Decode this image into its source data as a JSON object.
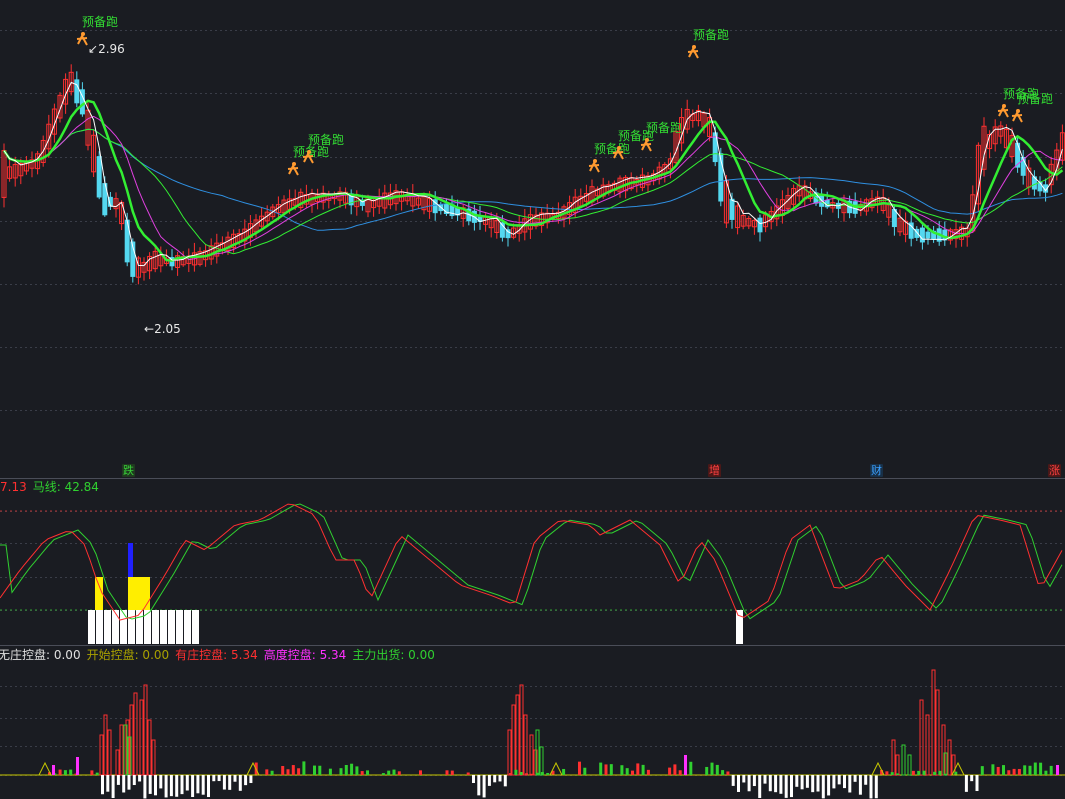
{
  "price_panel": {
    "high_label": "2.96",
    "low_label": "2.05",
    "signal_text": "预备跑",
    "signal_icon": "runner-icon",
    "signals_count": 9
  },
  "event_markers": [
    {
      "text": "跌",
      "color": "#38d038"
    },
    {
      "text": "增",
      "color": "#ff4040"
    },
    {
      "text": "财",
      "color": "#3aa0ff"
    },
    {
      "text": "涨",
      "color": "#ff4040"
    }
  ],
  "kd_panel": {
    "legend": [
      {
        "text": "7.13",
        "color": "#ff3030"
      },
      {
        "text": "马线: 42.84",
        "color": "#30d030"
      }
    ]
  },
  "control_panel": {
    "legend": [
      {
        "text": "无庄控盘: 0.00",
        "color": "#e0e0e0"
      },
      {
        "text": "开始控盘: 0.00",
        "color": "#a8a000"
      },
      {
        "text": "有庄控盘: 5.34",
        "color": "#ff3030"
      },
      {
        "text": "高度控盘: 5.34",
        "color": "#ff30ff"
      },
      {
        "text": "主力出货: 0.00",
        "color": "#30d030"
      }
    ]
  },
  "colors": {
    "background": "#1a1c22",
    "grid": "#3a3d48",
    "up": "#ff3030",
    "down": "#54d8f0",
    "ma_white": "#ffffff",
    "ma_green": "#33ee33",
    "ma_magenta": "#e040e0",
    "ma_blue": "#2f8fe0",
    "signal_text": "#33dd33",
    "signal_icon": "#ff9a30"
  },
  "chart_data": [
    {
      "type": "candlestick",
      "title": "",
      "annotations": [
        "2.96",
        "2.05",
        "预备跑"
      ],
      "series": [
        {
          "ref": "price"
        },
        {
          "ref": "ma_white"
        },
        {
          "ref": "ma_green"
        },
        {
          "ref": "ma_magenta"
        },
        {
          "ref": "ma_blue"
        }
      ],
      "ylim": [
        1.6,
        3.2
      ],
      "grid": true
    },
    {
      "type": "line",
      "series": [
        {
          "name": "",
          "color": "#ff3030"
        },
        {
          "name": "马线",
          "color": "#30d030"
        }
      ],
      "ylim": [
        0,
        100
      ],
      "grid": true
    },
    {
      "type": "bar",
      "series": [
        {
          "name": "无庄控盘"
        },
        {
          "name": "开始控盘"
        },
        {
          "name": "有庄控盘"
        },
        {
          "name": "高度控盘"
        },
        {
          "name": "主力出货"
        }
      ],
      "grid": true
    }
  ]
}
